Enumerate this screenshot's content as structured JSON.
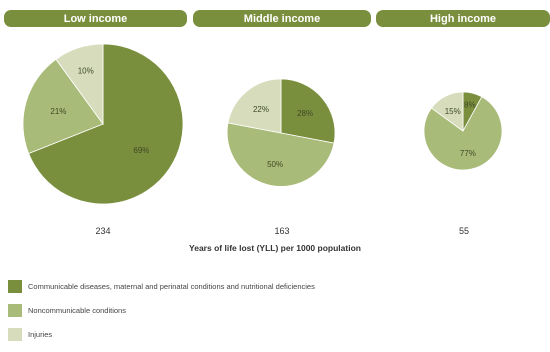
{
  "colors": {
    "header_bg": "#7a8f3e",
    "communicable": "#7a8f3e",
    "noncommunicable": "#a9bb78",
    "injuries": "#d6dcbc"
  },
  "chart_data": {
    "type": "pie",
    "xlabel": "Years of life lost (YLL) per 1000 population",
    "legend": [
      {
        "key": "communicable",
        "label": "Communicable diseases, maternal and perinatal conditions and nutritional deficiencies"
      },
      {
        "key": "noncommunicable",
        "label": "Noncommunicable conditions"
      },
      {
        "key": "injuries",
        "label": "Injuries"
      }
    ],
    "groups": [
      {
        "name": "Low income",
        "total": "234",
        "slices": [
          {
            "key": "communicable",
            "value": 69,
            "label": "69%"
          },
          {
            "key": "noncommunicable",
            "value": 21,
            "label": "21%"
          },
          {
            "key": "injuries",
            "value": 10,
            "label": "10%"
          }
        ]
      },
      {
        "name": "Middle income",
        "total": "163",
        "slices": [
          {
            "key": "communicable",
            "value": 28,
            "label": "28%"
          },
          {
            "key": "noncommunicable",
            "value": 50,
            "label": "50%"
          },
          {
            "key": "injuries",
            "value": 22,
            "label": "22%"
          }
        ]
      },
      {
        "name": "High income",
        "total": "55",
        "slices": [
          {
            "key": "communicable",
            "value": 8,
            "label": "8%"
          },
          {
            "key": "noncommunicable",
            "value": 77,
            "label": "77%"
          },
          {
            "key": "injuries",
            "value": 15,
            "label": "15%"
          }
        ]
      }
    ]
  }
}
